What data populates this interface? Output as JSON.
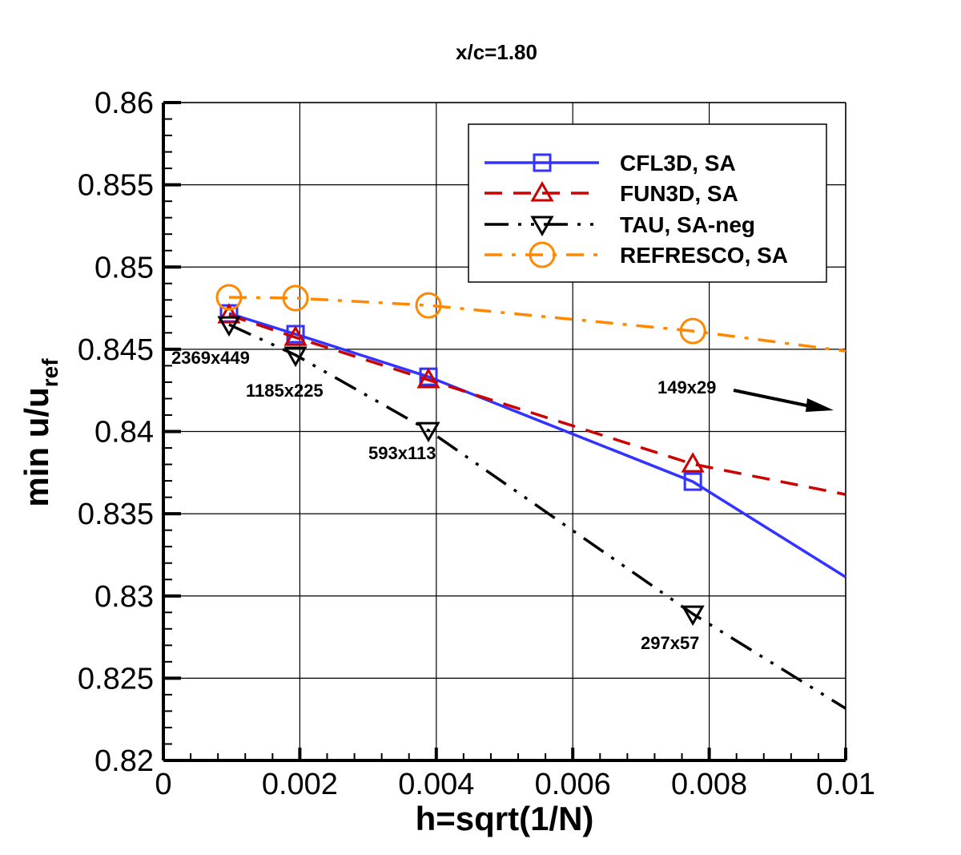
{
  "chart_data": {
    "type": "line",
    "title": "x/c=1.80",
    "xlabel": "h=sqrt(1/N)",
    "ylabel_main": "min u/u",
    "ylabel_sub": "ref",
    "xlim": [
      0,
      0.01
    ],
    "ylim": [
      0.82,
      0.86
    ],
    "xticks": [
      0,
      0.002,
      0.004,
      0.006,
      0.008,
      0.01
    ],
    "xtick_labels": [
      "0",
      "0.002",
      "0.004",
      "0.006",
      "0.008",
      "0.01"
    ],
    "yticks": [
      0.82,
      0.825,
      0.83,
      0.835,
      0.84,
      0.845,
      0.85,
      0.855,
      0.86
    ],
    "ytick_labels": [
      "0.82",
      "0.825",
      "0.83",
      "0.835",
      "0.84",
      "0.845",
      "0.85",
      "0.855",
      "0.86"
    ],
    "grid": true,
    "legend_position": "top-right",
    "series": [
      {
        "name": "CFL3D, SA",
        "color": "#3333ff",
        "marker": "square",
        "dash": "solid",
        "x": [
          0.000962,
          0.001937,
          0.003885,
          0.00776
        ],
        "y": [
          0.84718,
          0.84592,
          0.84333,
          0.83695
        ],
        "extends_to": [
          0.01,
          0.83115
        ]
      },
      {
        "name": "FUN3D, SA",
        "color": "#cc0000",
        "marker": "triangle-up",
        "dash": "dashed",
        "x": [
          0.000962,
          0.001937,
          0.003885,
          0.00776
        ],
        "y": [
          0.84708,
          0.84572,
          0.84314,
          0.83802
        ],
        "extends_to": [
          0.01,
          0.83617
        ]
      },
      {
        "name": "TAU, SA-neg",
        "color": "#000000",
        "marker": "triangle-down",
        "dash": "dash-dot-dot",
        "x": [
          0.000962,
          0.001937,
          0.003885,
          0.00776
        ],
        "y": [
          0.8465,
          0.84465,
          0.84007,
          0.82891
        ],
        "extends_to": [
          0.01,
          0.82316
        ]
      },
      {
        "name": "REFRESCO, SA",
        "color": "#ff8800",
        "marker": "circle",
        "dash": "dash-dot",
        "x": [
          0.000962,
          0.001937,
          0.003885,
          0.00776
        ],
        "y": [
          0.84816,
          0.84811,
          0.84767,
          0.84611
        ],
        "extends_to": [
          0.01,
          0.84489
        ]
      }
    ],
    "annotations": [
      "2369x449",
      "1185x225",
      "593x113",
      "297x57",
      "149x29"
    ]
  }
}
